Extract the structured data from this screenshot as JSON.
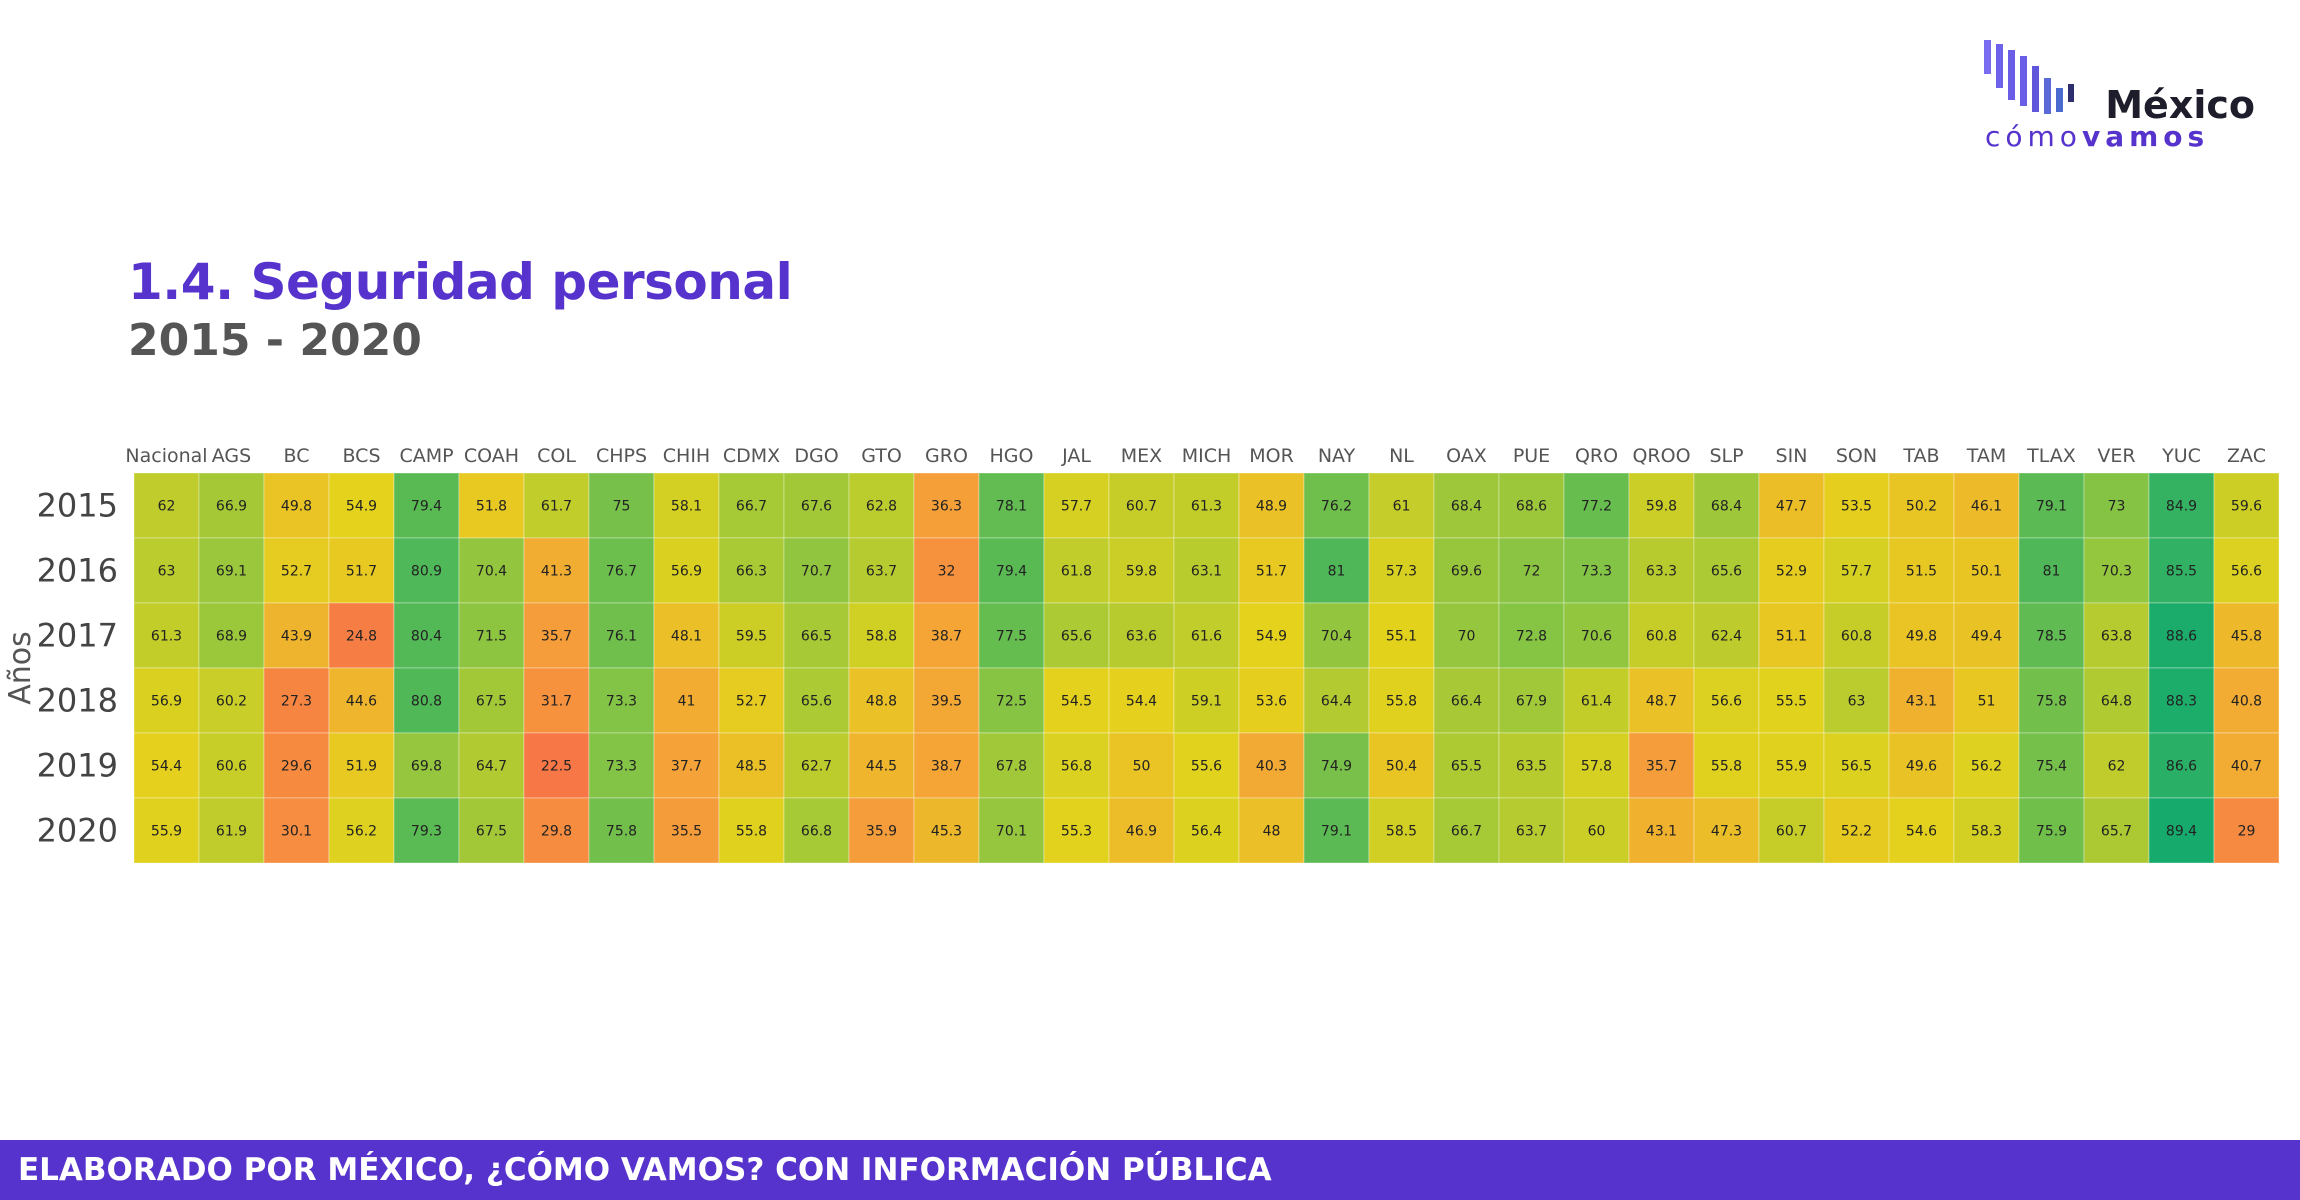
{
  "branding": {
    "logo_line1": "México",
    "logo_line2_a": "cómo",
    "logo_line2_b": "vamos"
  },
  "title": "1.4. Seguridad personal",
  "subtitle": "2015 - 2020",
  "footer": "ELABORADO POR MÉXICO, ¿CÓMO VAMOS? CON INFORMACIÓN PÚBLICA",
  "chart_data": {
    "type": "heatmap",
    "ylabel": "Años",
    "categories": [
      "Nacional",
      "AGS",
      "BC",
      "BCS",
      "CAMP",
      "COAH",
      "COL",
      "CHPS",
      "CHIH",
      "CDMX",
      "DGO",
      "GTO",
      "GRO",
      "HGO",
      "JAL",
      "MEX",
      "MICH",
      "MOR",
      "NAY",
      "NL",
      "OAX",
      "PUE",
      "QRO",
      "QROO",
      "SLP",
      "SIN",
      "SON",
      "TAB",
      "TAM",
      "TLAX",
      "VER",
      "YUC",
      "ZAC"
    ],
    "years": [
      "2015",
      "2016",
      "2017",
      "2018",
      "2019",
      "2020"
    ],
    "values": [
      [
        62,
        66.9,
        49.8,
        54.9,
        79.4,
        51.8,
        61.7,
        75,
        58.1,
        66.7,
        67.6,
        62.8,
        36.3,
        78.1,
        57.7,
        60.7,
        61.3,
        48.9,
        76.2,
        61,
        68.4,
        68.6,
        77.2,
        59.8,
        68.4,
        47.7,
        53.5,
        50.2,
        46.1,
        79.1,
        73,
        84.9,
        59.6
      ],
      [
        63,
        69.1,
        52.7,
        51.7,
        80.9,
        70.4,
        41.3,
        76.7,
        56.9,
        66.3,
        70.7,
        63.7,
        32,
        79.4,
        61.8,
        59.8,
        63.1,
        51.7,
        81,
        57.3,
        69.6,
        72,
        73.3,
        63.3,
        65.6,
        52.9,
        57.7,
        51.5,
        50.1,
        81,
        70.3,
        85.5,
        56.6
      ],
      [
        61.3,
        68.9,
        43.9,
        24.8,
        80.4,
        71.5,
        35.7,
        76.1,
        48.1,
        59.5,
        66.5,
        58.8,
        38.7,
        77.5,
        65.6,
        63.6,
        61.6,
        54.9,
        70.4,
        55.1,
        70,
        72.8,
        70.6,
        60.8,
        62.4,
        51.1,
        60.8,
        49.8,
        49.4,
        78.5,
        63.8,
        88.6,
        45.8
      ],
      [
        56.9,
        60.2,
        27.3,
        44.6,
        80.8,
        67.5,
        31.7,
        73.3,
        41,
        52.7,
        65.6,
        48.8,
        39.5,
        72.5,
        54.5,
        54.4,
        59.1,
        53.6,
        64.4,
        55.8,
        66.4,
        67.9,
        61.4,
        48.7,
        56.6,
        55.5,
        63,
        43.1,
        51,
        75.8,
        64.8,
        88.3,
        40.8
      ],
      [
        54.4,
        60.6,
        29.6,
        51.9,
        69.8,
        64.7,
        22.5,
        73.3,
        37.7,
        48.5,
        62.7,
        44.5,
        38.7,
        67.8,
        56.8,
        50,
        55.6,
        40.3,
        74.9,
        50.4,
        65.5,
        63.5,
        57.8,
        35.7,
        55.8,
        55.9,
        56.5,
        49.6,
        56.2,
        75.4,
        62,
        86.6,
        40.7
      ],
      [
        55.9,
        61.9,
        30.1,
        56.2,
        79.3,
        67.5,
        29.8,
        75.8,
        35.5,
        55.8,
        66.8,
        35.9,
        45.3,
        70.1,
        55.3,
        46.9,
        56.4,
        48,
        79.1,
        58.5,
        66.7,
        63.7,
        60,
        43.1,
        47.3,
        60.7,
        52.2,
        54.6,
        58.3,
        75.9,
        65.7,
        89.4,
        29
      ]
    ],
    "color_scale": [
      "#f7704a",
      "#f5a238",
      "#e4d21c",
      "#88c443",
      "#12aa6e"
    ],
    "value_range": [
      20,
      90
    ]
  }
}
